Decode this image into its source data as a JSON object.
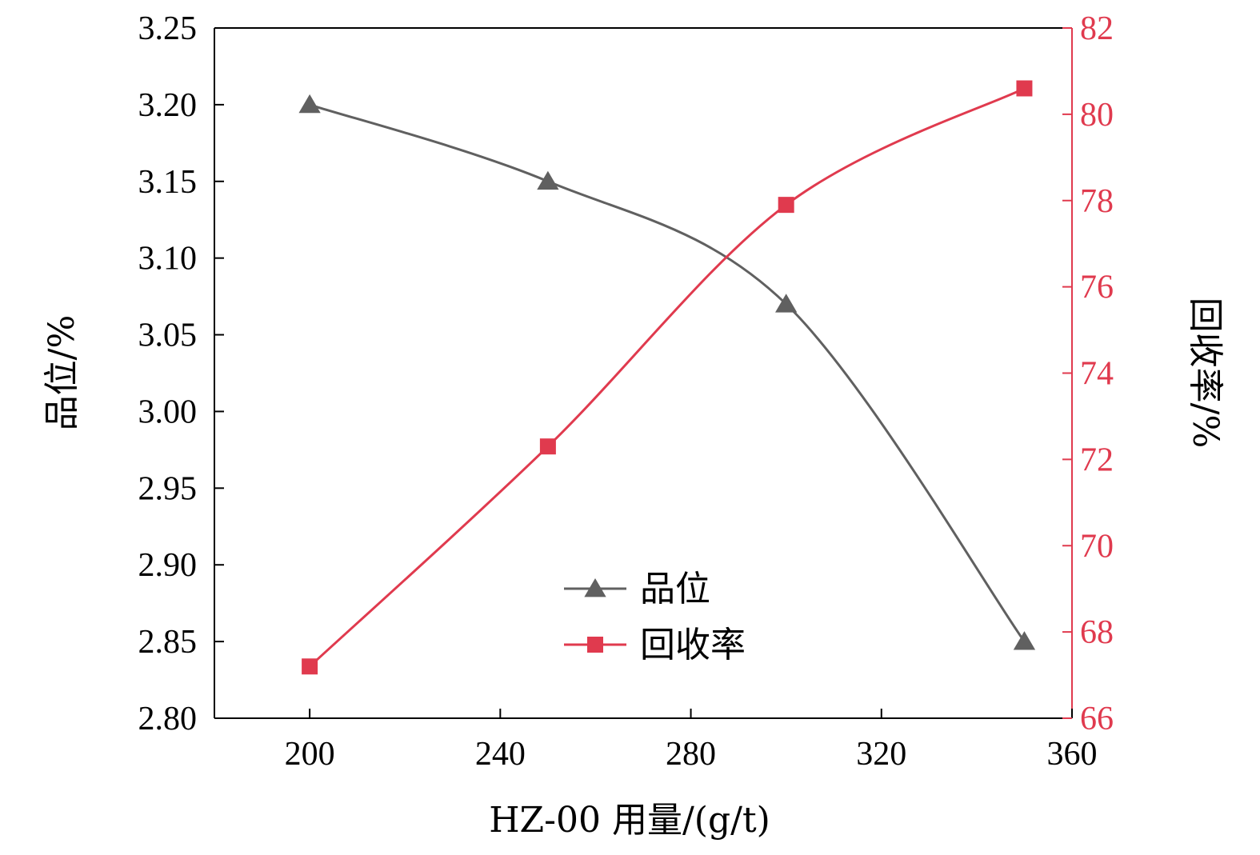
{
  "chart_data": {
    "type": "line",
    "x": [
      200,
      250,
      300,
      350
    ],
    "xlim": [
      180,
      360
    ],
    "xticks": [
      200,
      240,
      280,
      320,
      360
    ],
    "xlabel": "HZ-00 用量/(g/t)",
    "y_left": {
      "label": "品位/%",
      "lim": [
        2.8,
        3.25
      ],
      "ticks": [
        "2.80",
        "2.85",
        "2.90",
        "2.95",
        "3.00",
        "3.05",
        "3.10",
        "3.15",
        "3.20",
        "3.25"
      ],
      "color": "#000000"
    },
    "y_right": {
      "label": "回收率/%",
      "lim": [
        66,
        82
      ],
      "ticks": [
        "66",
        "68",
        "70",
        "72",
        "74",
        "76",
        "78",
        "80",
        "82"
      ],
      "color": "#e03a4e"
    },
    "series": [
      {
        "name": "品位",
        "axis": "left",
        "values": [
          3.2,
          3.15,
          3.07,
          2.85
        ],
        "color": "#606060",
        "marker": "triangle"
      },
      {
        "name": "回收率",
        "axis": "right",
        "values": [
          67.2,
          72.3,
          77.9,
          80.6
        ],
        "color": "#e03a4e",
        "marker": "square"
      }
    ],
    "legend": "center-bottom",
    "grid": false
  }
}
